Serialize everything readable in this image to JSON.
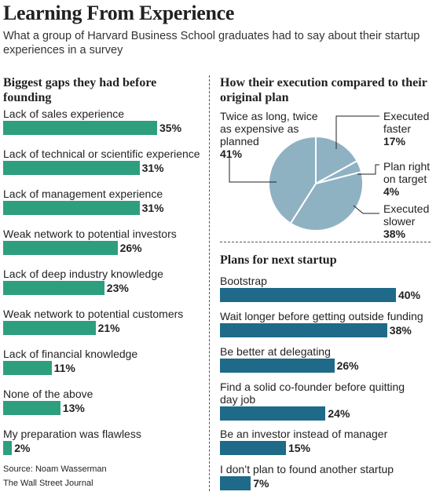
{
  "title": "Learning From Experience",
  "subtitle": "What a group of Harvard Business School graduates had to say about their startup experiences in a survey",
  "colors": {
    "bar": "#2e9f7e",
    "plan_bar": "#1e6a88",
    "pie_fill": "#8fb2c3",
    "pie_stroke": "#ffffff"
  },
  "gaps": {
    "heading": "Biggest gaps they had before founding"
  },
  "execution": {
    "heading": "How their execution compared to their original plan",
    "slices": [
      {
        "label": "Executed faster",
        "value": "17%"
      },
      {
        "label": "Plan right on target",
        "value": "4%"
      },
      {
        "label": "Executed slower",
        "value": "38%"
      },
      {
        "label": "Twice as long, twice as expensive as planned",
        "value": "41%"
      }
    ]
  },
  "plans": {
    "heading": "Plans for next startup"
  },
  "source": {
    "line1": "Source: Noam Wasserman",
    "line2": "The Wall Street Journal"
  },
  "chart_data": [
    {
      "type": "bar",
      "title": "Biggest gaps they had before founding",
      "categories": [
        "Lack of sales experience",
        "Lack of technical or scientific experience",
        "Lack of management experience",
        "Weak network to potential investors",
        "Lack of deep industry knowledge",
        "Weak network to potential customers",
        "Lack of financial knowledge",
        "None of the above",
        "My preparation was flawless"
      ],
      "values": [
        35,
        31,
        31,
        26,
        23,
        21,
        11,
        13,
        2
      ],
      "value_labels": [
        "35%",
        "31%",
        "31%",
        "26%",
        "23%",
        "21%",
        "11%",
        "13%",
        "2%"
      ]
    },
    {
      "type": "pie",
      "title": "How their execution compared to their original plan",
      "categories": [
        "Executed faster",
        "Plan right on target",
        "Executed slower",
        "Twice as long, twice as expensive as planned"
      ],
      "values": [
        17,
        4,
        38,
        41
      ]
    },
    {
      "type": "bar",
      "title": "Plans for next startup",
      "categories": [
        "Bootstrap",
        "Wait longer before getting outside funding",
        "Be better at delegating",
        "Find a solid co-founder before quitting day job",
        "Be an investor instead of manager",
        "I don’t plan to found another startup"
      ],
      "values": [
        40,
        38,
        26,
        24,
        15,
        7
      ],
      "value_labels": [
        "40%",
        "38%",
        "26%",
        "24%",
        "15%",
        "7%"
      ]
    }
  ]
}
